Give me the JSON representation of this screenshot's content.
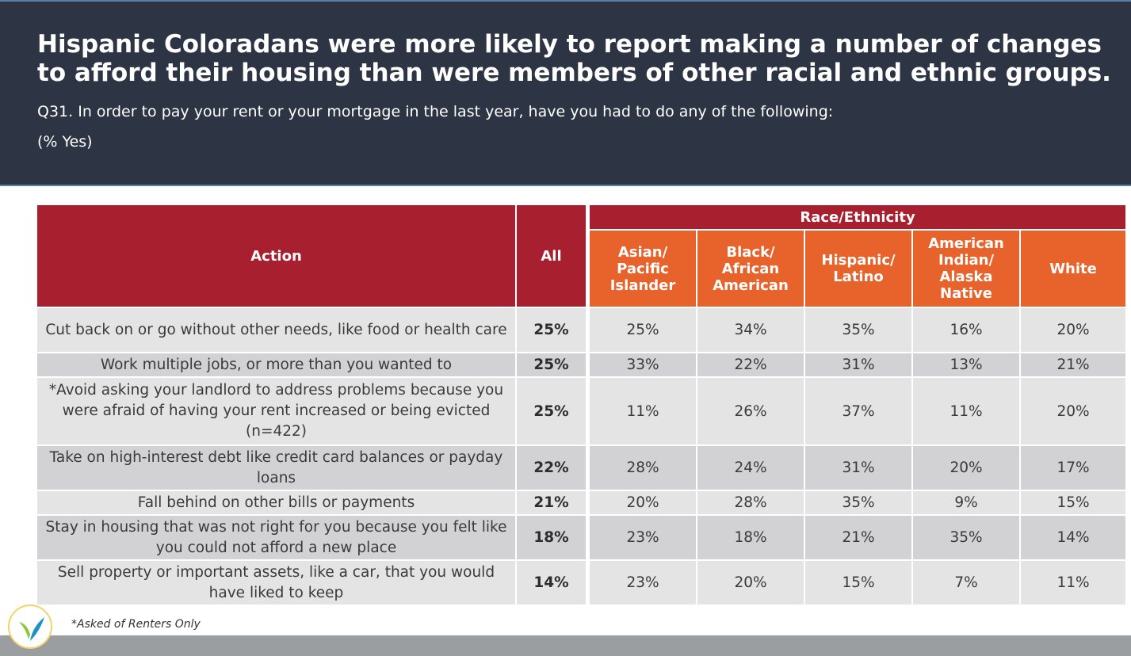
{
  "header": {
    "title": "Hispanic Coloradans were more likely to report making a number of changes to afford their housing than were members of other racial and ethnic groups.",
    "question": "Q31. In order to pay your rent or your mortgage in the last year, have you had to do any of the following:",
    "subtitle": "(% Yes)"
  },
  "table": {
    "col_action": "Action",
    "col_all": "All",
    "group_label": "Race/Ethnicity",
    "groups": [
      "Asian/ Pacific Islander",
      "Black/ African American",
      "Hispanic/ Latino",
      "American Indian/ Alaska Native",
      "White"
    ],
    "rows": [
      {
        "action": "Cut back on or go without other needs, like food or health care",
        "all": "25%",
        "values": [
          "25%",
          "34%",
          "35%",
          "16%",
          "20%"
        ]
      },
      {
        "action": "Work multiple jobs, or more than you wanted to",
        "all": "25%",
        "values": [
          "33%",
          "22%",
          "31%",
          "13%",
          "21%"
        ]
      },
      {
        "action": "*Avoid asking your landlord to address problems because you were afraid of having your rent increased or being evicted (n=422)",
        "all": "25%",
        "values": [
          "11%",
          "26%",
          "37%",
          "11%",
          "20%"
        ]
      },
      {
        "action": "Take on high-interest debt like credit card balances or payday loans",
        "all": "22%",
        "values": [
          "28%",
          "24%",
          "31%",
          "20%",
          "17%"
        ]
      },
      {
        "action": "Fall behind on other bills or payments",
        "all": "21%",
        "values": [
          "20%",
          "28%",
          "35%",
          "9%",
          "15%"
        ]
      },
      {
        "action": "Stay in housing that was not right for you because you felt like you could not afford a new place",
        "all": "18%",
        "values": [
          "23%",
          "18%",
          "21%",
          "35%",
          "14%"
        ]
      },
      {
        "action": "Sell property or important assets, like a car, that you would have liked to keep",
        "all": "14%",
        "values": [
          "23%",
          "20%",
          "15%",
          "7%",
          "11%"
        ]
      }
    ]
  },
  "footer": {
    "note": "*Asked of Renters Only"
  },
  "colors": {
    "header_bg": "#2d3443",
    "primary_red": "#a8202f",
    "accent_orange": "#e8632b",
    "row_light": "#e4e4e4",
    "row_dark": "#d2d2d4",
    "footer_bar": "#9a9ea1"
  },
  "icons": {
    "logo": "leaf-logo-icon"
  }
}
